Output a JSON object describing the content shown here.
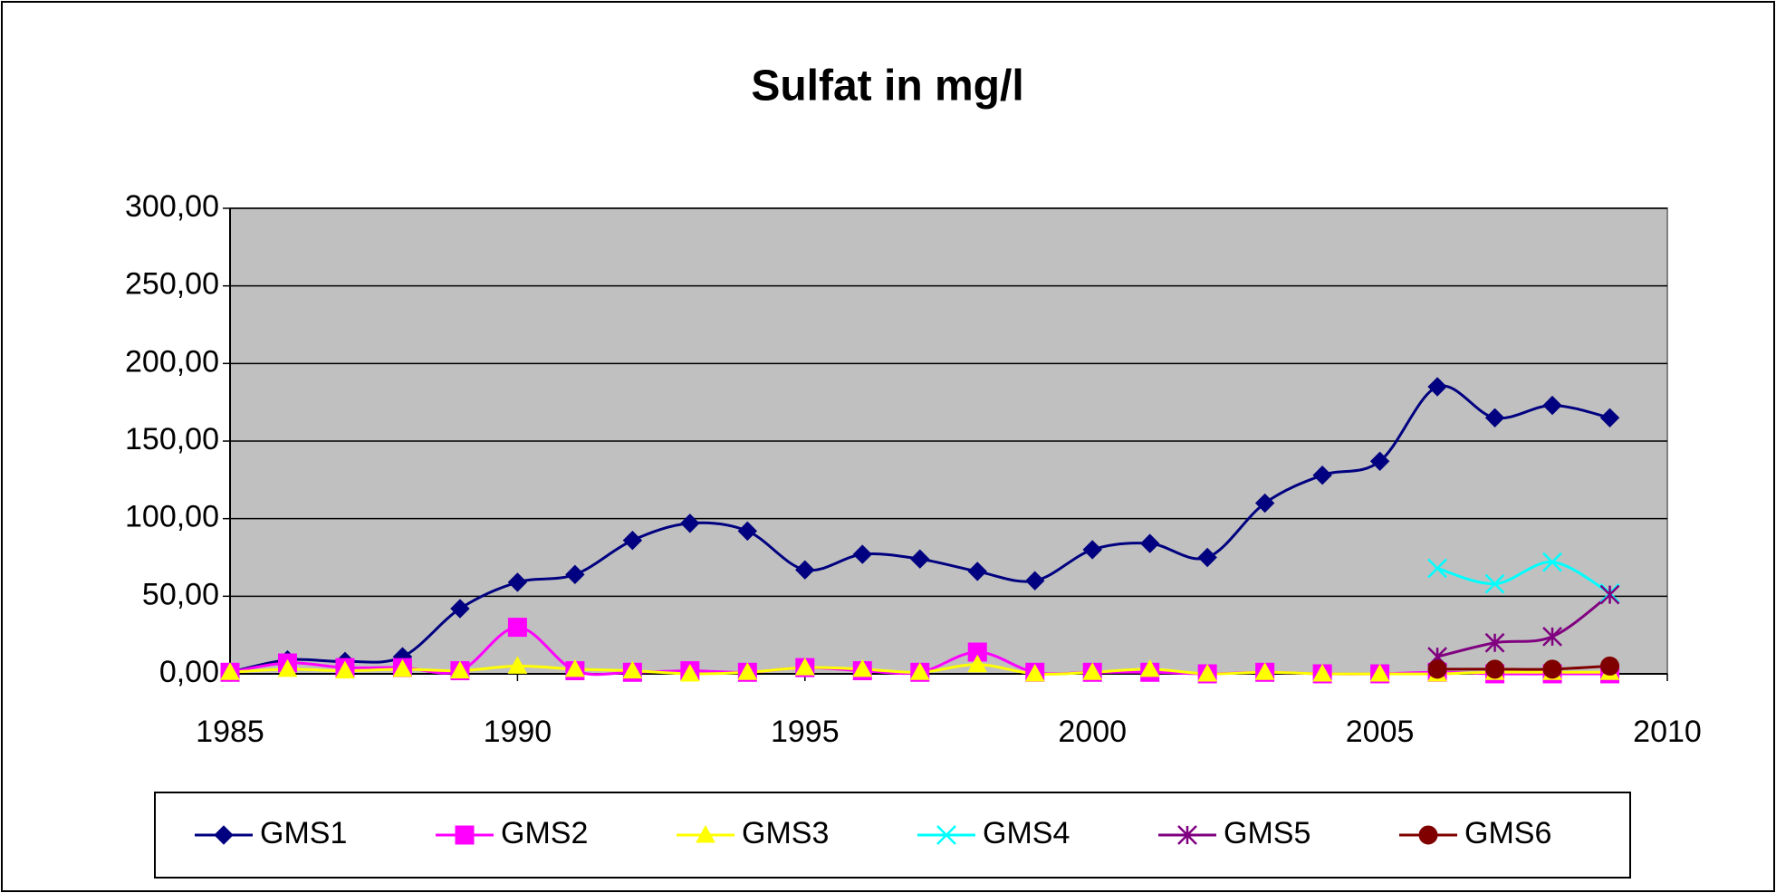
{
  "chart_data": {
    "type": "line",
    "title": "Sulfat in mg/l",
    "x": [
      1985,
      1986,
      1987,
      1988,
      1989,
      1990,
      1991,
      1992,
      1993,
      1994,
      1995,
      1996,
      1997,
      1998,
      1999,
      2000,
      2001,
      2002,
      2003,
      2004,
      2005,
      2006,
      2007,
      2008,
      2009
    ],
    "series": [
      {
        "name": "GMS1",
        "color": "#000080",
        "marker": "diamond",
        "values": [
          1,
          9,
          8,
          11,
          42,
          59,
          64,
          86,
          97,
          92,
          67,
          77,
          74,
          66,
          60,
          80,
          84,
          75,
          110,
          128,
          137,
          185,
          165,
          173,
          165
        ]
      },
      {
        "name": "GMS2",
        "color": "#ff00ff",
        "marker": "square",
        "values": [
          1,
          7,
          4,
          4,
          2,
          30,
          2,
          1,
          2,
          1,
          4,
          2,
          1,
          14,
          1,
          1,
          1,
          0,
          1,
          0,
          0,
          1,
          0,
          0,
          0
        ]
      },
      {
        "name": "GMS3",
        "color": "#ffff00",
        "marker": "triangle",
        "values": [
          1,
          3,
          2,
          3,
          2,
          5,
          3,
          2,
          0,
          1,
          4,
          3,
          1,
          6,
          0,
          1,
          3,
          0,
          1,
          0,
          0,
          0,
          1,
          1,
          1
        ]
      },
      {
        "name": "GMS4",
        "color": "#00ffff",
        "marker": "x",
        "values": [
          null,
          null,
          null,
          null,
          null,
          null,
          null,
          null,
          null,
          null,
          null,
          null,
          null,
          null,
          null,
          null,
          null,
          null,
          null,
          null,
          null,
          68,
          58,
          72,
          52
        ]
      },
      {
        "name": "GMS5",
        "color": "#800080",
        "marker": "star",
        "values": [
          null,
          null,
          null,
          null,
          null,
          null,
          null,
          null,
          null,
          null,
          null,
          null,
          null,
          null,
          null,
          null,
          null,
          null,
          null,
          null,
          null,
          11,
          20,
          24,
          51
        ]
      },
      {
        "name": "GMS6",
        "color": "#800000",
        "marker": "circle",
        "values": [
          null,
          null,
          null,
          null,
          null,
          null,
          null,
          null,
          null,
          null,
          null,
          null,
          null,
          null,
          null,
          null,
          null,
          null,
          null,
          null,
          null,
          3,
          3,
          3,
          5
        ]
      }
    ],
    "xlim": [
      1985,
      2010
    ],
    "xticks": [
      1985,
      1990,
      1995,
      2000,
      2005,
      2010
    ],
    "ylim": [
      0,
      300
    ],
    "yticks": [
      {
        "value": 0,
        "label": "0,00"
      },
      {
        "value": 50,
        "label": "50,00"
      },
      {
        "value": 100,
        "label": "100,00"
      },
      {
        "value": 150,
        "label": "150,00"
      },
      {
        "value": 200,
        "label": "200,00"
      },
      {
        "value": 250,
        "label": "250,00"
      },
      {
        "value": 300,
        "label": "300,00"
      }
    ],
    "grid": true,
    "legend": "bottom",
    "plot_background": "#c0c0c0"
  }
}
